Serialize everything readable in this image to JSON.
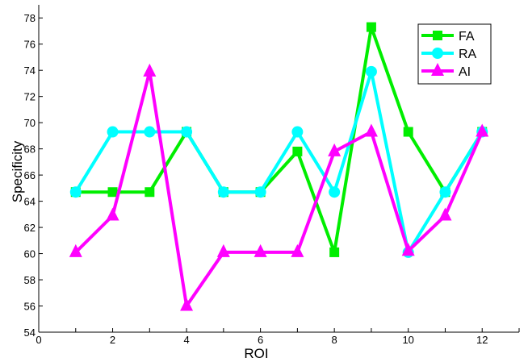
{
  "chart_data": {
    "type": "line",
    "title": "",
    "xlabel": "ROI",
    "ylabel": "Specificity",
    "xlim": [
      0,
      13
    ],
    "ylim": [
      54,
      79
    ],
    "xticks": [
      0,
      2,
      4,
      6,
      8,
      10,
      12
    ],
    "yticks": [
      54,
      56,
      58,
      60,
      62,
      64,
      66,
      68,
      70,
      72,
      74,
      76,
      78
    ],
    "grid": false,
    "legend_position": "top-right",
    "x": [
      1,
      2,
      3,
      4,
      5,
      6,
      7,
      8,
      9,
      10,
      11,
      12
    ],
    "series": [
      {
        "name": "FA",
        "color": "#00ee00",
        "marker": "square",
        "values": [
          64.7,
          64.7,
          64.7,
          69.3,
          64.7,
          64.7,
          67.8,
          60.1,
          77.3,
          69.3,
          64.7,
          69.3
        ]
      },
      {
        "name": "RA",
        "color": "#00ffff",
        "marker": "circle",
        "values": [
          64.7,
          69.3,
          69.3,
          69.3,
          64.7,
          64.7,
          69.3,
          64.7,
          73.9,
          60.1,
          64.7,
          69.3
        ]
      },
      {
        "name": "AI",
        "color": "#ff00ff",
        "marker": "triangle",
        "values": [
          60.1,
          62.9,
          73.9,
          56.0,
          60.1,
          60.1,
          60.1,
          67.8,
          69.3,
          60.2,
          62.9,
          69.3
        ]
      }
    ]
  }
}
